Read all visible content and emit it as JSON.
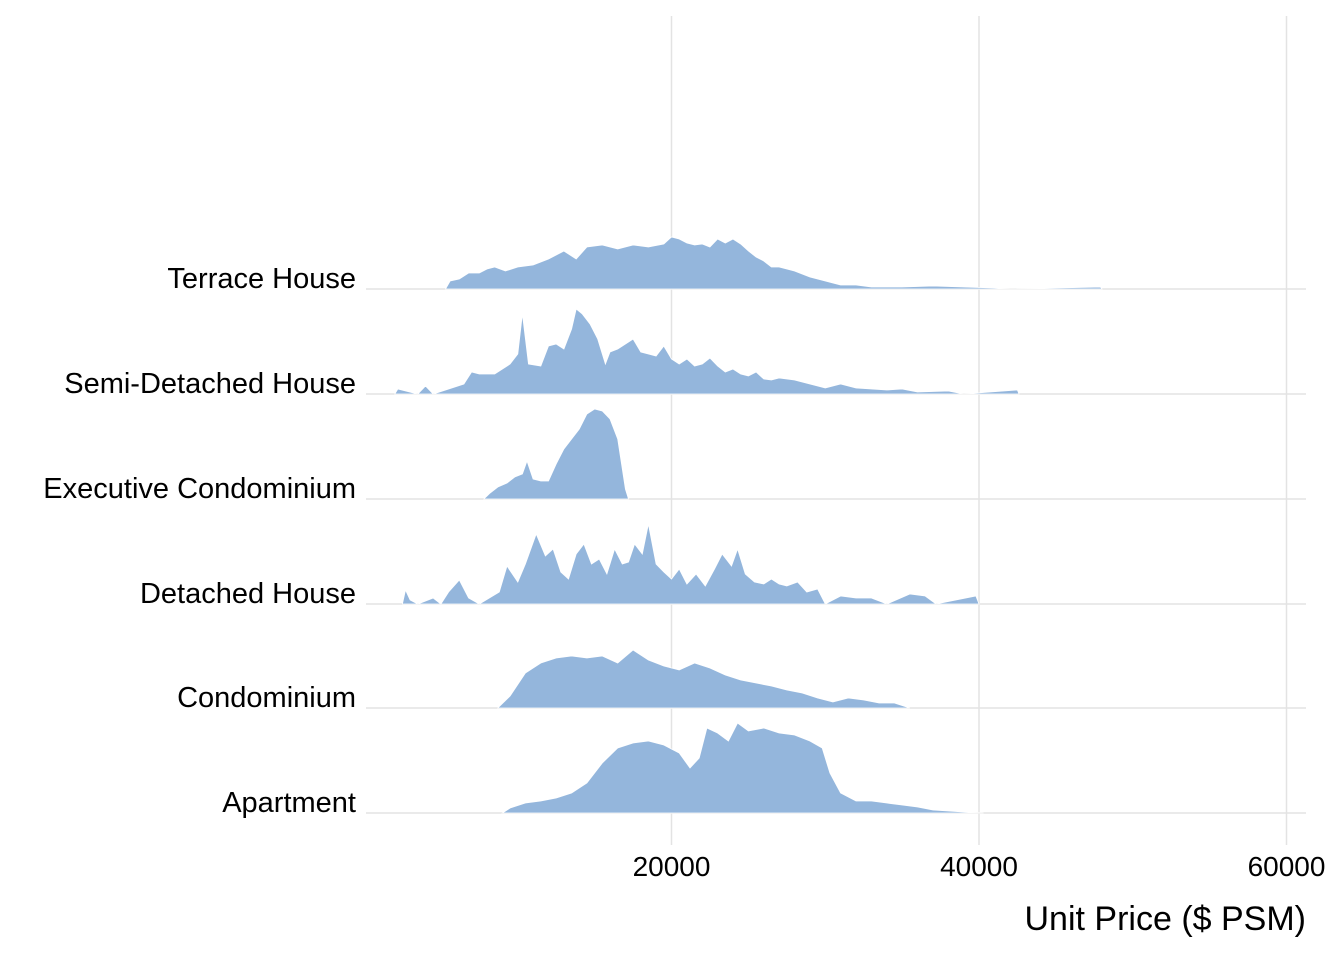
{
  "chart_data": {
    "type": "ridgeline",
    "xlabel": "Unit Price ($ PSM)",
    "xlim": [
      0,
      62000
    ],
    "x_ticks": [
      20000,
      40000,
      60000
    ],
    "x_tick_labels": [
      "20000",
      "40000",
      "60000"
    ],
    "fill_color": "#94B6DC",
    "grid_color": "#E3E3E3",
    "grid": true,
    "categories": [
      "Apartment",
      "Condominium",
      "Detached House",
      "Executive Condominium",
      "Semi-Detached House",
      "Terrace House"
    ],
    "series": [
      {
        "name": "Apartment",
        "points": [
          [
            9000,
            0
          ],
          [
            9500,
            5
          ],
          [
            10500,
            10
          ],
          [
            11500,
            12
          ],
          [
            12500,
            15
          ],
          [
            13500,
            20
          ],
          [
            14500,
            30
          ],
          [
            15500,
            50
          ],
          [
            16500,
            65
          ],
          [
            17500,
            70
          ],
          [
            18500,
            72
          ],
          [
            19500,
            68
          ],
          [
            20500,
            60
          ],
          [
            21200,
            45
          ],
          [
            21800,
            55
          ],
          [
            22300,
            85
          ],
          [
            23000,
            80
          ],
          [
            23700,
            72
          ],
          [
            24300,
            90
          ],
          [
            25000,
            82
          ],
          [
            26000,
            85
          ],
          [
            27000,
            80
          ],
          [
            28000,
            78
          ],
          [
            29000,
            72
          ],
          [
            29800,
            65
          ],
          [
            30300,
            40
          ],
          [
            31000,
            20
          ],
          [
            32000,
            12
          ],
          [
            33000,
            12
          ],
          [
            34000,
            10
          ],
          [
            35000,
            8
          ],
          [
            36000,
            6
          ],
          [
            37000,
            3
          ],
          [
            38000,
            2
          ],
          [
            39000,
            1
          ],
          [
            40300,
            0
          ]
        ]
      },
      {
        "name": "Condominium",
        "points": [
          [
            8700,
            0
          ],
          [
            9500,
            12
          ],
          [
            10500,
            35
          ],
          [
            11500,
            45
          ],
          [
            12500,
            50
          ],
          [
            13500,
            52
          ],
          [
            14500,
            50
          ],
          [
            15500,
            52
          ],
          [
            16500,
            45
          ],
          [
            17500,
            58
          ],
          [
            18500,
            48
          ],
          [
            19500,
            42
          ],
          [
            20500,
            38
          ],
          [
            21500,
            45
          ],
          [
            22500,
            40
          ],
          [
            23500,
            33
          ],
          [
            24500,
            28
          ],
          [
            25500,
            25
          ],
          [
            26500,
            22
          ],
          [
            27500,
            18
          ],
          [
            28500,
            15
          ],
          [
            29500,
            10
          ],
          [
            30500,
            6
          ],
          [
            31500,
            10
          ],
          [
            32500,
            8
          ],
          [
            33500,
            5
          ],
          [
            34500,
            5
          ],
          [
            35500,
            0
          ]
        ]
      },
      {
        "name": "Detached House",
        "points": [
          [
            2500,
            0
          ],
          [
            2700,
            14
          ],
          [
            3000,
            4
          ],
          [
            3500,
            0
          ],
          [
            4500,
            6
          ],
          [
            5000,
            0
          ],
          [
            5500,
            12
          ],
          [
            6200,
            24
          ],
          [
            6800,
            6
          ],
          [
            7500,
            0
          ],
          [
            8800,
            12
          ],
          [
            9300,
            38
          ],
          [
            10000,
            22
          ],
          [
            10500,
            40
          ],
          [
            11200,
            70
          ],
          [
            11800,
            48
          ],
          [
            12300,
            55
          ],
          [
            12800,
            32
          ],
          [
            13300,
            25
          ],
          [
            13800,
            50
          ],
          [
            14300,
            60
          ],
          [
            14800,
            40
          ],
          [
            15300,
            45
          ],
          [
            15800,
            30
          ],
          [
            16300,
            55
          ],
          [
            16800,
            40
          ],
          [
            17200,
            42
          ],
          [
            17600,
            60
          ],
          [
            18100,
            50
          ],
          [
            18500,
            80
          ],
          [
            19000,
            40
          ],
          [
            19500,
            32
          ],
          [
            20000,
            25
          ],
          [
            20500,
            35
          ],
          [
            21000,
            20
          ],
          [
            21600,
            30
          ],
          [
            22200,
            18
          ],
          [
            22800,
            35
          ],
          [
            23300,
            50
          ],
          [
            23900,
            38
          ],
          [
            24300,
            55
          ],
          [
            24800,
            30
          ],
          [
            25400,
            22
          ],
          [
            26000,
            20
          ],
          [
            26500,
            25
          ],
          [
            27000,
            20
          ],
          [
            27500,
            18
          ],
          [
            28200,
            22
          ],
          [
            28800,
            12
          ],
          [
            29500,
            15
          ],
          [
            30000,
            0
          ],
          [
            31000,
            8
          ],
          [
            32000,
            6
          ],
          [
            33000,
            6
          ],
          [
            34000,
            0
          ],
          [
            35500,
            10
          ],
          [
            36500,
            8
          ],
          [
            37200,
            0
          ],
          [
            39800,
            8
          ],
          [
            40000,
            0
          ]
        ]
      },
      {
        "name": "Executive Condominium",
        "points": [
          [
            7800,
            0
          ],
          [
            8200,
            6
          ],
          [
            8700,
            12
          ],
          [
            9300,
            16
          ],
          [
            9800,
            22
          ],
          [
            10300,
            25
          ],
          [
            10600,
            38
          ],
          [
            11000,
            20
          ],
          [
            11500,
            18
          ],
          [
            12000,
            18
          ],
          [
            12500,
            35
          ],
          [
            13000,
            50
          ],
          [
            13500,
            60
          ],
          [
            14000,
            70
          ],
          [
            14500,
            85
          ],
          [
            15000,
            90
          ],
          [
            15500,
            88
          ],
          [
            16000,
            80
          ],
          [
            16500,
            60
          ],
          [
            17000,
            10
          ],
          [
            17200,
            0
          ]
        ]
      },
      {
        "name": "Semi-Detached House",
        "points": [
          [
            2000,
            0
          ],
          [
            2200,
            5
          ],
          [
            3500,
            0
          ],
          [
            4000,
            8
          ],
          [
            4500,
            0
          ],
          [
            6500,
            10
          ],
          [
            7000,
            22
          ],
          [
            7500,
            20
          ],
          [
            8500,
            20
          ],
          [
            9500,
            30
          ],
          [
            10000,
            40
          ],
          [
            10300,
            80
          ],
          [
            10700,
            30
          ],
          [
            11500,
            28
          ],
          [
            12000,
            48
          ],
          [
            12500,
            50
          ],
          [
            13000,
            45
          ],
          [
            13500,
            65
          ],
          [
            13800,
            85
          ],
          [
            14200,
            80
          ],
          [
            14700,
            70
          ],
          [
            15200,
            55
          ],
          [
            15700,
            30
          ],
          [
            16000,
            42
          ],
          [
            16500,
            45
          ],
          [
            17000,
            50
          ],
          [
            17500,
            55
          ],
          [
            18000,
            42
          ],
          [
            18500,
            40
          ],
          [
            19000,
            38
          ],
          [
            19500,
            48
          ],
          [
            20000,
            35
          ],
          [
            20500,
            30
          ],
          [
            21000,
            35
          ],
          [
            21500,
            28
          ],
          [
            22000,
            30
          ],
          [
            22500,
            36
          ],
          [
            23000,
            28
          ],
          [
            23500,
            22
          ],
          [
            24000,
            25
          ],
          [
            24500,
            20
          ],
          [
            25000,
            18
          ],
          [
            25500,
            22
          ],
          [
            26000,
            15
          ],
          [
            26500,
            14
          ],
          [
            27000,
            16
          ],
          [
            28000,
            14
          ],
          [
            29000,
            10
          ],
          [
            30000,
            6
          ],
          [
            31000,
            10
          ],
          [
            32000,
            6
          ],
          [
            33000,
            5
          ],
          [
            34000,
            4
          ],
          [
            35000,
            5
          ],
          [
            36000,
            2
          ],
          [
            38000,
            3
          ],
          [
            39000,
            0
          ],
          [
            42500,
            4
          ],
          [
            42600,
            0
          ]
        ]
      },
      {
        "name": "Terrace House",
        "points": [
          [
            5300,
            0
          ],
          [
            5600,
            8
          ],
          [
            6200,
            10
          ],
          [
            6800,
            16
          ],
          [
            7500,
            16
          ],
          [
            8000,
            20
          ],
          [
            8500,
            22
          ],
          [
            9200,
            18
          ],
          [
            10000,
            22
          ],
          [
            11000,
            24
          ],
          [
            12000,
            30
          ],
          [
            13000,
            38
          ],
          [
            13800,
            30
          ],
          [
            14500,
            42
          ],
          [
            15500,
            44
          ],
          [
            16500,
            40
          ],
          [
            17500,
            44
          ],
          [
            18500,
            42
          ],
          [
            19500,
            45
          ],
          [
            20000,
            52
          ],
          [
            20500,
            50
          ],
          [
            21000,
            46
          ],
          [
            21500,
            44
          ],
          [
            22000,
            45
          ],
          [
            22500,
            42
          ],
          [
            23000,
            50
          ],
          [
            23500,
            46
          ],
          [
            24000,
            50
          ],
          [
            24500,
            45
          ],
          [
            25000,
            38
          ],
          [
            25500,
            32
          ],
          [
            26000,
            28
          ],
          [
            26500,
            22
          ],
          [
            27000,
            22
          ],
          [
            27500,
            20
          ],
          [
            28000,
            18
          ],
          [
            28500,
            15
          ],
          [
            29000,
            12
          ],
          [
            29500,
            10
          ],
          [
            30000,
            8
          ],
          [
            30500,
            6
          ],
          [
            31000,
            4
          ],
          [
            32000,
            4
          ],
          [
            33000,
            2
          ],
          [
            35000,
            2
          ],
          [
            37000,
            3
          ],
          [
            39000,
            2
          ],
          [
            41000,
            1
          ],
          [
            42000,
            0
          ],
          [
            47900,
            2
          ],
          [
            48000,
            0
          ]
        ]
      }
    ]
  }
}
